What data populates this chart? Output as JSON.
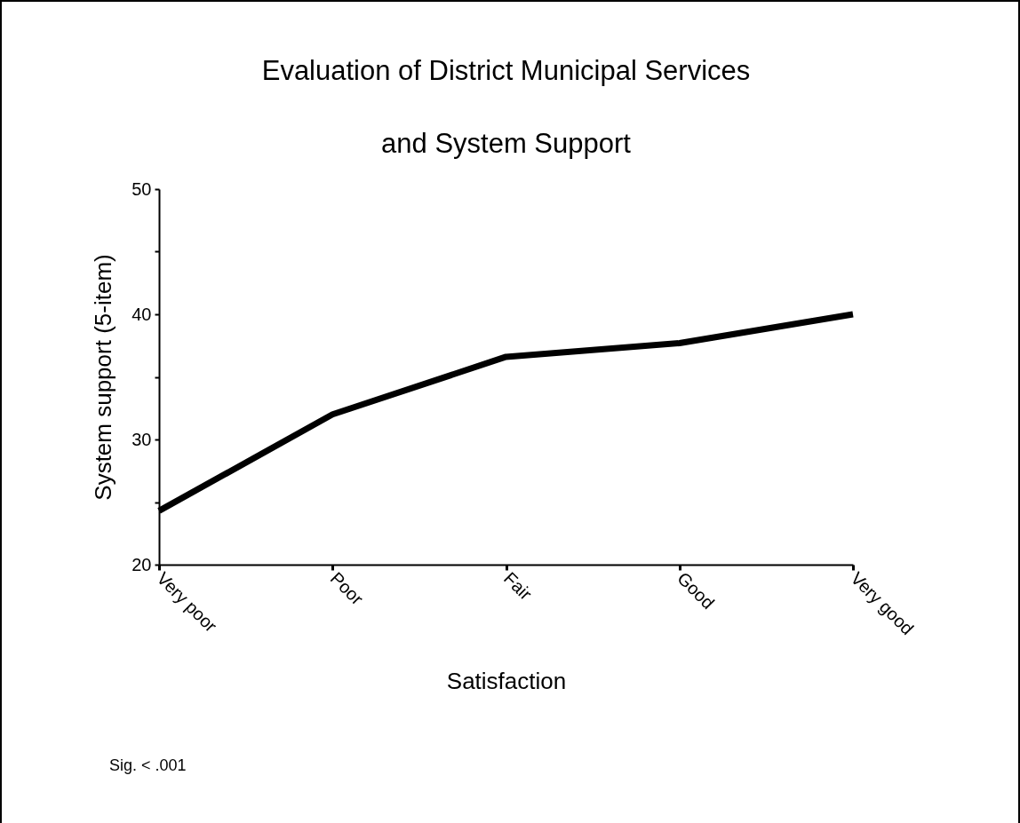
{
  "chart_data": {
    "type": "line",
    "title": "Evaluation of District Municipal Services and System Support",
    "xlabel": "Satisfaction",
    "ylabel": "System support (5-item)",
    "categories": [
      "Very poor",
      "Poor",
      "Fair",
      "Good",
      "Very good"
    ],
    "values": [
      24.3,
      32.0,
      36.6,
      37.7,
      40.0
    ],
    "color": "#000000",
    "line_style": "solid",
    "marker": "none",
    "ylim": [
      20,
      50
    ],
    "yticks": [
      20,
      {
        "value": 25,
        "label": null
      },
      30,
      {
        "value": 35,
        "label": null
      },
      40,
      {
        "value": 45,
        "label": null
      },
      50
    ],
    "grid": false,
    "annotations": [
      "Sig. < .001"
    ]
  }
}
